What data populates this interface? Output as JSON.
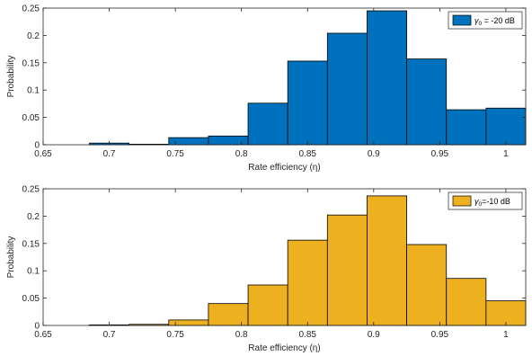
{
  "chart_data": [
    {
      "type": "bar",
      "bin_edges": [
        0.685,
        0.715,
        0.745,
        0.775,
        0.805,
        0.835,
        0.865,
        0.895,
        0.925,
        0.955,
        0.985,
        1.015
      ],
      "values": [
        0.003,
        0.001,
        0.013,
        0.016,
        0.076,
        0.153,
        0.204,
        0.245,
        0.157,
        0.064,
        0.067
      ],
      "color": "#0072BD",
      "xlabel": "Rate efficiency (η)",
      "ylabel": "Probability",
      "xlim": [
        0.65,
        1.015
      ],
      "ylim": [
        0,
        0.25
      ],
      "xticks": [
        0.65,
        0.7,
        0.75,
        0.8,
        0.85,
        0.9,
        0.95,
        1
      ],
      "xtick_labels": [
        "0.65",
        "0.7",
        "0.75",
        "0.8",
        "0.85",
        "0.9",
        "0.95",
        "1"
      ],
      "yticks": [
        0,
        0.05,
        0.1,
        0.15,
        0.2,
        0.25
      ],
      "ytick_labels": [
        "0",
        "0.05",
        "0.1",
        "0.15",
        "0.2",
        "0.25"
      ],
      "legend": {
        "symbol": "γ",
        "subscript": "0",
        "suffix": " = -20 dB",
        "position": "top-right"
      }
    },
    {
      "type": "bar",
      "bin_edges": [
        0.685,
        0.715,
        0.745,
        0.775,
        0.805,
        0.835,
        0.865,
        0.895,
        0.925,
        0.955,
        0.985,
        1.015
      ],
      "values": [
        0.001,
        0.002,
        0.01,
        0.04,
        0.074,
        0.156,
        0.202,
        0.237,
        0.148,
        0.086,
        0.045
      ],
      "color": "#EDB120",
      "xlabel": "Rate efficiency (η)",
      "ylabel": "Probability",
      "xlim": [
        0.65,
        1.015
      ],
      "ylim": [
        0,
        0.25
      ],
      "xticks": [
        0.65,
        0.7,
        0.75,
        0.8,
        0.85,
        0.9,
        0.95,
        1
      ],
      "xtick_labels": [
        "0.65",
        "0.7",
        "0.75",
        "0.8",
        "0.85",
        "0.9",
        "0.95",
        "1"
      ],
      "yticks": [
        0,
        0.05,
        0.1,
        0.15,
        0.2,
        0.25
      ],
      "ytick_labels": [
        "0",
        "0.05",
        "0.1",
        "0.15",
        "0.2",
        "0.25"
      ],
      "legend": {
        "symbol": "γ",
        "subscript": "0",
        "suffix": "=-10 dB",
        "position": "top-right"
      }
    }
  ]
}
